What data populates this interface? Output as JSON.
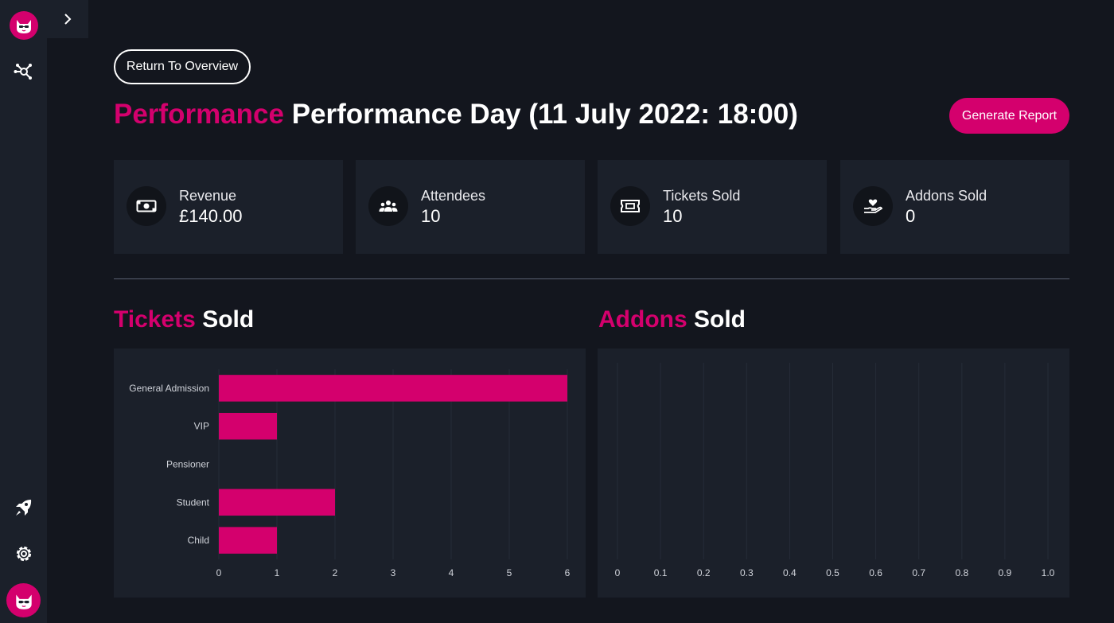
{
  "sidebar": {
    "logo_icon": "cat-logo-icon",
    "items": [
      {
        "icon": "network-icon"
      },
      {
        "icon": "rocket-icon"
      },
      {
        "icon": "gear-icon"
      }
    ],
    "avatar_icon": "cat-avatar-icon",
    "expand_icon": "chevron-right-icon"
  },
  "header": {
    "return_label": "Return To Overview",
    "title_highlight": "Performance",
    "title_rest": " Performance Day (11 July 2022: 18:00)",
    "report_label": "Generate Report"
  },
  "stats": [
    {
      "label": "Revenue",
      "value": "£140.00",
      "icon": "cash-icon"
    },
    {
      "label": "Attendees",
      "value": "10",
      "icon": "people-icon"
    },
    {
      "label": "Tickets Sold",
      "value": "10",
      "icon": "ticket-icon"
    },
    {
      "label": "Addons Sold",
      "value": "0",
      "icon": "heart-hand-icon"
    }
  ],
  "sections": {
    "tickets": {
      "highlight": "Tickets",
      "rest": " Sold"
    },
    "addons": {
      "highlight": "Addons",
      "rest": " Sold"
    }
  },
  "colors": {
    "accent": "#d4006d",
    "background": "#13161e",
    "panel": "#1b202a"
  },
  "chart_data": [
    {
      "type": "bar",
      "orientation": "horizontal",
      "categories": [
        "General Admission",
        "VIP",
        "Pensioner",
        "Student",
        "Child"
      ],
      "values": [
        6,
        1,
        0,
        2,
        1
      ],
      "xlim": [
        0,
        6
      ],
      "xticks": [
        "0",
        "1",
        "2",
        "3",
        "4",
        "5",
        "6"
      ],
      "color": "#d4006d",
      "grid": true
    },
    {
      "type": "bar",
      "orientation": "horizontal",
      "categories": [],
      "values": [],
      "xlim": [
        0,
        1.0
      ],
      "xticks": [
        "0",
        "0.1",
        "0.2",
        "0.3",
        "0.4",
        "0.5",
        "0.6",
        "0.7",
        "0.8",
        "0.9",
        "1.0"
      ],
      "grid": true
    }
  ]
}
